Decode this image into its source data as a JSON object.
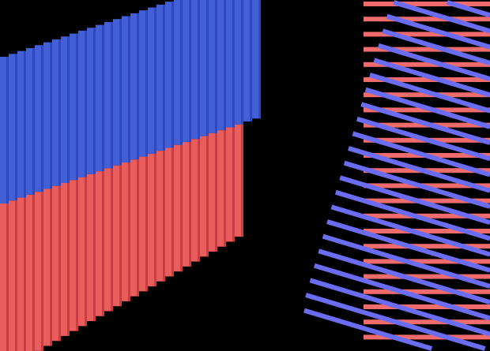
{
  "scene": {
    "background": "#000000",
    "block_top_color": "#425fd6",
    "block_top_ridge_color": "#2f47c0",
    "block_bottom_color": "#e95d5d",
    "block_bottom_ridge_color": "#c83e42",
    "stripe_red_color": "#f06b6b",
    "stripe_blue_color": "#6a6cf2"
  }
}
